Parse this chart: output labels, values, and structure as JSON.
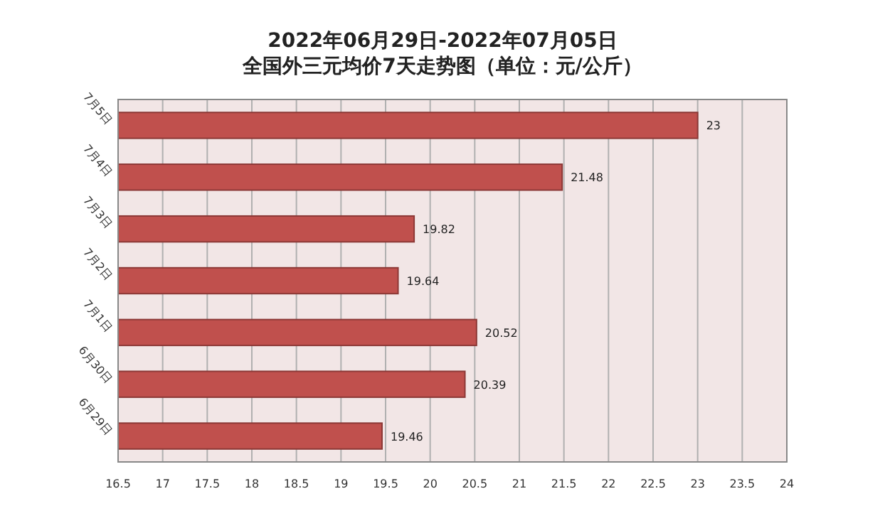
{
  "chart_data": {
    "type": "bar",
    "orientation": "horizontal",
    "title": "2022年06月29日-2022年07月05日",
    "subtitle": "全国外三元均价7天走势图（单位：元/公斤）",
    "categories": [
      "7月5日",
      "7月4日",
      "7月3日",
      "7月2日",
      "7月1日",
      "6月30日",
      "6月29日"
    ],
    "values": [
      23,
      21.48,
      19.82,
      19.64,
      20.52,
      20.39,
      19.46
    ],
    "color": "#c0504d",
    "data_labels": true,
    "grid": "x",
    "xlim": [
      16.5,
      24
    ],
    "xticks": [
      16.5,
      17,
      17.5,
      18,
      18.5,
      19,
      19.5,
      20,
      20.5,
      21,
      21.5,
      22,
      22.5,
      23,
      23.5,
      24
    ]
  }
}
